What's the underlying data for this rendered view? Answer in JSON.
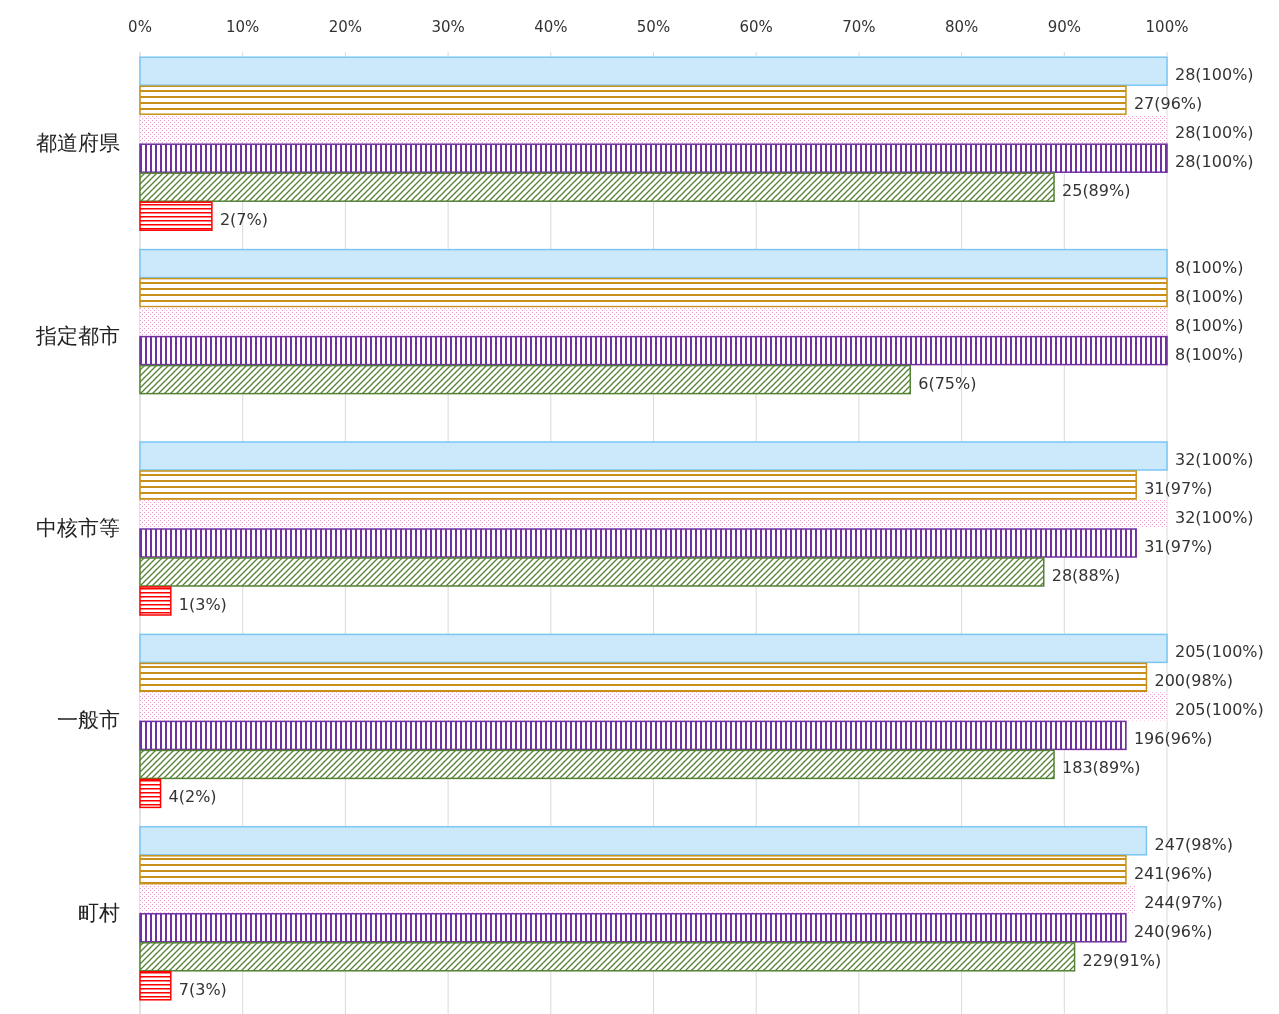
{
  "chart_data": {
    "type": "bar",
    "orientation": "horizontal",
    "categories": [
      "都道府県",
      "指定都市",
      "中核市等",
      "一般市",
      "町村"
    ],
    "xlim": [
      0,
      100
    ],
    "xticks": [
      {
        "value": 0,
        "label": "0%"
      },
      {
        "value": 10,
        "label": "10%"
      },
      {
        "value": 20,
        "label": "20%"
      },
      {
        "value": 30,
        "label": "30%"
      },
      {
        "value": 40,
        "label": "40%"
      },
      {
        "value": 50,
        "label": "50%"
      },
      {
        "value": 60,
        "label": "60%"
      },
      {
        "value": 70,
        "label": "70%"
      },
      {
        "value": 80,
        "label": "80%"
      },
      {
        "value": 90,
        "label": "90%"
      },
      {
        "value": 100,
        "label": "100%"
      }
    ],
    "grid": "x",
    "series": [
      {
        "color": "#cce9fb",
        "values": [
          100,
          100,
          100,
          100,
          98
        ],
        "value_labels": [
          "28(100%)",
          "8(100%)",
          "32(100%)",
          "205(100%)",
          "247(98%)"
        ]
      },
      {
        "color": "#c8901a",
        "values": [
          96,
          100,
          97,
          98,
          96
        ],
        "value_labels": [
          "27(96%)",
          "8(100%)",
          "31(97%)",
          "200(98%)",
          "241(96%)"
        ]
      },
      {
        "color": "#f29bd0",
        "values": [
          100,
          100,
          100,
          100,
          97
        ],
        "value_labels": [
          "28(100%)",
          "8(100%)",
          "32(100%)",
          "205(100%)",
          "244(97%)"
        ]
      },
      {
        "color": "#7030a0",
        "values": [
          100,
          100,
          97,
          96,
          96
        ],
        "value_labels": [
          "28(100%)",
          "8(100%)",
          "31(97%)",
          "196(96%)",
          "240(96%)"
        ]
      },
      {
        "color": "#548235",
        "values": [
          89,
          75,
          88,
          89,
          91
        ],
        "value_labels": [
          "25(89%)",
          "6(75%)",
          "28(88%)",
          "183(89%)",
          "229(91%)"
        ]
      },
      {
        "color": "#ff0000",
        "values": [
          7,
          null,
          3,
          2,
          3
        ],
        "value_labels": [
          "2(7%)",
          null,
          "1(3%)",
          "4(2%)",
          "7(3%)"
        ]
      }
    ]
  }
}
